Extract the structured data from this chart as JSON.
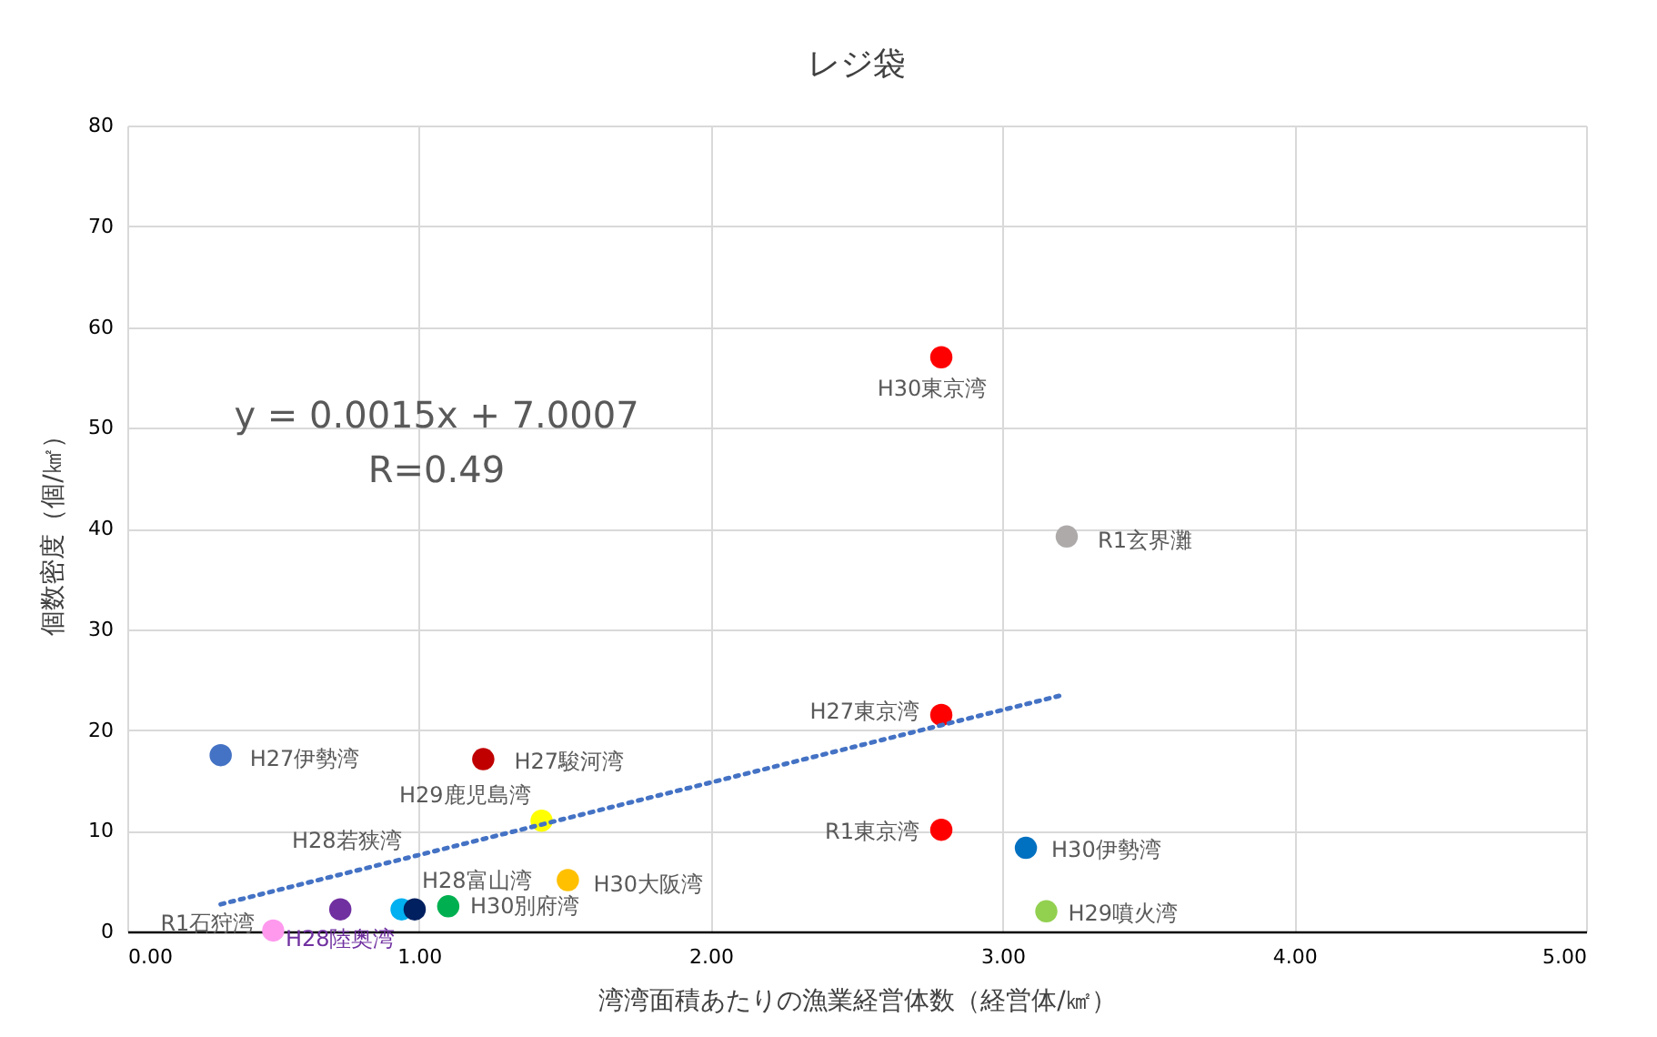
{
  "chart_data": {
    "type": "scatter",
    "title": "レジ袋",
    "xlabel": "湾湾面積あたりの漁業経営体数（経営体/㎢）",
    "ylabel": "個数密度（個/㎢）",
    "xlim": [
      0,
      5
    ],
    "xticks": [
      {
        "value": 0,
        "label": "0.00"
      },
      {
        "value": 1,
        "label": "1.00"
      },
      {
        "value": 2,
        "label": "2.00"
      },
      {
        "value": 3,
        "label": "3.00"
      },
      {
        "value": 4,
        "label": "4.00"
      },
      {
        "value": 5,
        "label": "5.00"
      }
    ],
    "ylim": [
      0,
      80
    ],
    "yticks": [
      0,
      10,
      20,
      30,
      40,
      50,
      60,
      70,
      80
    ],
    "grid": true,
    "marker": "circle",
    "annotations": [
      "y = 0.0015x + 7.0007",
      "R=0.49"
    ],
    "series": [
      {
        "name": "H27伊勢湾",
        "color": "#4472c4",
        "x": [
          0.32
        ],
        "values": [
          17.5
        ]
      },
      {
        "name": "H27駿河湾",
        "color": "#c00000",
        "x": [
          1.22
        ],
        "values": [
          17.1
        ]
      },
      {
        "name": "H28若狭湾",
        "color": "#00b0f0",
        "x": [
          0.94
        ],
        "values": [
          2.2
        ]
      },
      {
        "name": "H28富山湾",
        "color": "#002060",
        "x": [
          0.985
        ],
        "values": [
          2.2
        ]
      },
      {
        "name": "H28陸奥湾",
        "color": "#7030a0",
        "x": [
          0.73
        ],
        "values": [
          2.2
        ]
      },
      {
        "name": "R1石狩湾",
        "color": "#ff99ee",
        "x": [
          0.5
        ],
        "values": [
          0.1
        ]
      },
      {
        "name": "H30別府湾",
        "color": "#00b050",
        "x": [
          1.1
        ],
        "values": [
          2.5
        ]
      },
      {
        "name": "H29鹿児島湾",
        "color": "#ffff00",
        "x": [
          1.42
        ],
        "values": [
          11.0
        ]
      },
      {
        "name": "H30大阪湾",
        "color": "#ffc000",
        "x": [
          1.51
        ],
        "values": [
          5.1
        ]
      },
      {
        "name": "H30東京湾",
        "color": "#ff0000",
        "x": [
          2.79
        ],
        "values": [
          57.0
        ]
      },
      {
        "name": "R1玄界灘",
        "color": "#aeaaaa",
        "x": [
          3.22
        ],
        "values": [
          39.2
        ]
      },
      {
        "name": "H27東京湾",
        "color": "#ff0000",
        "x": [
          2.79
        ],
        "values": [
          21.5
        ]
      },
      {
        "name": "R1東京湾",
        "color": "#ff0000",
        "x": [
          2.79
        ],
        "values": [
          10.1
        ]
      },
      {
        "name": "H30伊勢湾",
        "color": "#0070c0",
        "x": [
          3.08
        ],
        "values": [
          8.3
        ]
      },
      {
        "name": "H29噴火湾",
        "color": "#92d050",
        "x": [
          3.15
        ],
        "values": [
          2.0
        ]
      },
      {
        "type": "line",
        "color": "#4472c4",
        "line_style": "dotted",
        "marker": "none",
        "x": [
          0.32,
          3.21
        ],
        "values": [
          2.7,
          23.5
        ]
      }
    ]
  }
}
